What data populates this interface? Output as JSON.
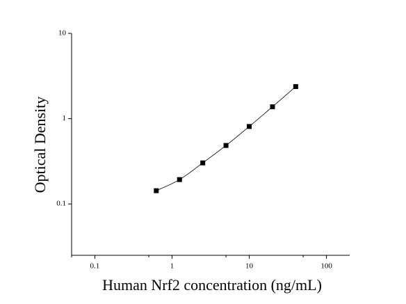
{
  "chart_data": {
    "type": "scatter",
    "x_label": "Human Nrf2 concentration (ng/mL)",
    "y_label": "Optical Density",
    "x": [
      0.625,
      1.25,
      2.5,
      5,
      10,
      20,
      40
    ],
    "values": [
      0.143,
      0.193,
      0.303,
      0.485,
      0.81,
      1.38,
      2.38
    ],
    "color": "#000000",
    "xlog": true,
    "ylog": true,
    "xlim": [
      0.05,
      200
    ],
    "ylim": [
      0.025,
      10
    ],
    "xticks": [
      0.1,
      1,
      10,
      100
    ],
    "yticks": [
      0.1,
      1,
      10
    ],
    "xminorticks": [
      0.05,
      0.5,
      5,
      50
    ],
    "fit_line": true
  }
}
